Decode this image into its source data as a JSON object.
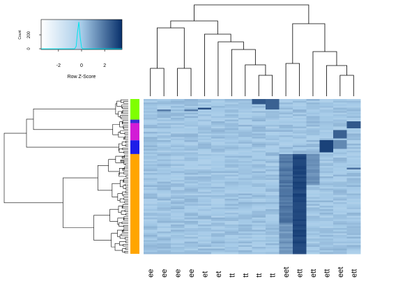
{
  "chart_data": {
    "type": "heatmap",
    "title": "",
    "columns": [
      "ee",
      "ee",
      "ee",
      "ee",
      "et",
      "et",
      "tt",
      "tt",
      "tt",
      "tt",
      "eet",
      "ett",
      "ett",
      "ett",
      "eet",
      "ett"
    ],
    "row_count": 90,
    "value_range": [
      -3.5,
      3.5
    ],
    "colors": {
      "low": "#ffffff",
      "mid": "#a6cbe8",
      "high": "#08306b",
      "row_side_groups": [
        "#7fff00",
        "#3a2cd6",
        "#d21cd6",
        "#1e1ee8",
        "#ffa500"
      ]
    },
    "row_side_group_sizes": [
      12,
      2,
      10,
      8,
      58
    ],
    "color_key": {
      "xlabel": "Row Z-Score",
      "ylabel": "Count",
      "x_ticks": [
        "-2",
        "0",
        "2"
      ],
      "y_ticks": [
        "0",
        "200"
      ],
      "x_range": [
        -3.5,
        3.5
      ],
      "histogram_color": "#00e5ee"
    }
  }
}
